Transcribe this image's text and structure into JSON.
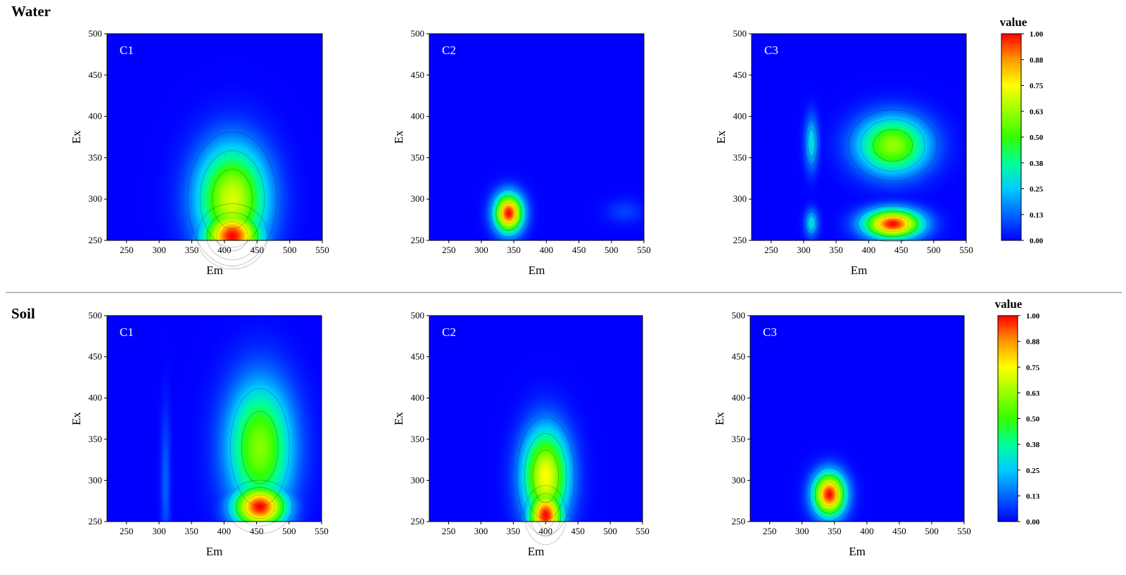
{
  "rows": {
    "water": {
      "title": "Water"
    },
    "soil": {
      "title": "Soil"
    }
  },
  "colorbar": {
    "title": "value",
    "ticks": [
      "1.00",
      "0.88",
      "0.75",
      "0.63",
      "0.50",
      "0.38",
      "0.25",
      "0.13",
      "0.00"
    ],
    "range": [
      0,
      1
    ],
    "colormap": [
      "#0000ff",
      "#0066ff",
      "#00ccff",
      "#00ff99",
      "#33ff00",
      "#99ff00",
      "#ffff00",
      "#ff9900",
      "#ff0000"
    ]
  },
  "chart_data": [
    {
      "type": "heatmap",
      "group": "Water",
      "panel": "C1",
      "xlabel": "Em",
      "ylabel": "Ex",
      "xlim": [
        220,
        550
      ],
      "ylim": [
        250,
        500
      ],
      "xticks": [
        250,
        300,
        350,
        400,
        450,
        500,
        550
      ],
      "yticks": [
        250,
        300,
        350,
        400,
        450,
        500
      ],
      "peaks": [
        {
          "em": 412,
          "ex": 255,
          "value": 1.0
        },
        {
          "em": 412,
          "ex": 300,
          "value": 0.7
        }
      ]
    },
    {
      "type": "heatmap",
      "group": "Water",
      "panel": "C2",
      "xlabel": "Em",
      "ylabel": "Ex",
      "xlim": [
        220,
        550
      ],
      "ylim": [
        250,
        500
      ],
      "xticks": [
        250,
        300,
        350,
        400,
        450,
        500,
        550
      ],
      "yticks": [
        250,
        300,
        350,
        400,
        450,
        500
      ],
      "peaks": [
        {
          "em": 342,
          "ex": 283,
          "value": 1.0
        },
        {
          "em": 520,
          "ex": 285,
          "value": 0.08
        }
      ]
    },
    {
      "type": "heatmap",
      "group": "Water",
      "panel": "C3",
      "xlabel": "Em",
      "ylabel": "Ex",
      "xlim": [
        220,
        550
      ],
      "ylim": [
        250,
        500
      ],
      "xticks": [
        250,
        300,
        350,
        400,
        450,
        500,
        550
      ],
      "yticks": [
        250,
        300,
        350,
        400,
        450,
        500
      ],
      "peaks": [
        {
          "em": 437,
          "ex": 270,
          "value": 1.0
        },
        {
          "em": 437,
          "ex": 365,
          "value": 0.62
        },
        {
          "em": 312,
          "ex": 368,
          "value": 0.3
        },
        {
          "em": 312,
          "ex": 271,
          "value": 0.3
        }
      ]
    },
    {
      "type": "heatmap",
      "group": "Soil",
      "panel": "C1",
      "xlabel": "Em",
      "ylabel": "Ex",
      "xlim": [
        220,
        550
      ],
      "ylim": [
        250,
        500
      ],
      "xticks": [
        250,
        300,
        350,
        400,
        450,
        500,
        550
      ],
      "yticks": [
        250,
        300,
        350,
        400,
        450,
        500
      ],
      "peaks": [
        {
          "em": 455,
          "ex": 268,
          "value": 1.0
        },
        {
          "em": 455,
          "ex": 340,
          "value": 0.6
        },
        {
          "em": 310,
          "ex": 300,
          "value": 0.12
        }
      ]
    },
    {
      "type": "heatmap",
      "group": "Soil",
      "panel": "C2",
      "xlabel": "Em",
      "ylabel": "Ex",
      "xlim": [
        220,
        550
      ],
      "ylim": [
        250,
        500
      ],
      "xticks": [
        250,
        300,
        350,
        400,
        450,
        500,
        550
      ],
      "yticks": [
        250,
        300,
        350,
        400,
        450,
        500
      ],
      "peaks": [
        {
          "em": 400,
          "ex": 258,
          "value": 1.0
        },
        {
          "em": 400,
          "ex": 305,
          "value": 0.75
        }
      ]
    },
    {
      "type": "heatmap",
      "group": "Soil",
      "panel": "C3",
      "xlabel": "Em",
      "ylabel": "Ex",
      "xlim": [
        220,
        550
      ],
      "ylim": [
        250,
        500
      ],
      "xticks": [
        250,
        300,
        350,
        400,
        450,
        500,
        550
      ],
      "yticks": [
        250,
        300,
        350,
        400,
        450,
        500
      ],
      "peaks": [
        {
          "em": 342,
          "ex": 283,
          "value": 1.0
        }
      ]
    }
  ]
}
